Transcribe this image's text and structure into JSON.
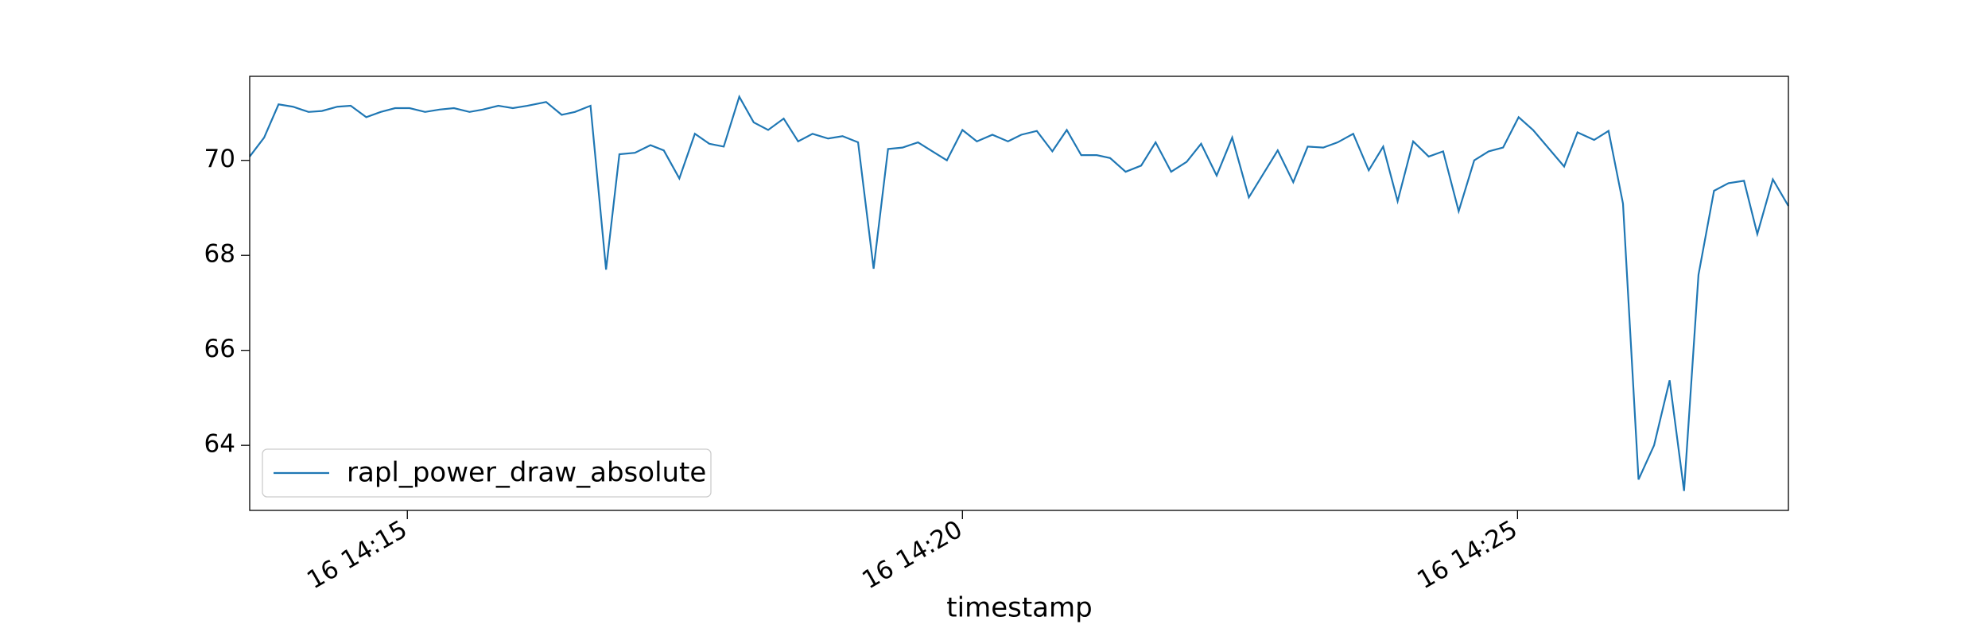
{
  "chart_data": {
    "type": "line",
    "x_label": "timestamp",
    "x": [
      13.58,
      13.71,
      13.84,
      13.97,
      14.11,
      14.23,
      14.37,
      14.49,
      14.63,
      14.76,
      14.89,
      15.02,
      15.16,
      15.29,
      15.42,
      15.56,
      15.68,
      15.82,
      15.95,
      16.08,
      16.25,
      16.39,
      16.51,
      16.65,
      16.79,
      16.91,
      17.05,
      17.19,
      17.31,
      17.45,
      17.59,
      17.72,
      17.85,
      17.99,
      18.12,
      18.25,
      18.39,
      18.52,
      18.65,
      18.79,
      18.92,
      19.06,
      19.2,
      19.33,
      19.46,
      19.6,
      19.73,
      19.86,
      20.0,
      20.13,
      20.27,
      20.41,
      20.53,
      20.67,
      20.81,
      20.94,
      21.07,
      21.21,
      21.33,
      21.47,
      21.61,
      21.74,
      21.88,
      22.02,
      22.15,
      22.29,
      22.43,
      22.58,
      22.84,
      22.98,
      23.11,
      23.25,
      23.38,
      23.52,
      23.66,
      23.79,
      23.92,
      24.06,
      24.2,
      24.33,
      24.47,
      24.61,
      24.74,
      24.87,
      25.01,
      25.14,
      25.42,
      25.54,
      25.69,
      25.82,
      25.95,
      26.09,
      26.23,
      26.37,
      26.5,
      26.63,
      26.77,
      26.9,
      27.04,
      27.16,
      27.3,
      27.44
    ],
    "series": [
      {
        "name": "rapl_power_draw_absolute",
        "color": "#1f77b4",
        "values": [
          70.08,
          70.48,
          71.18,
          71.13,
          71.02,
          71.04,
          71.13,
          71.15,
          70.91,
          71.02,
          71.1,
          71.1,
          71.02,
          71.07,
          71.1,
          71.02,
          71.07,
          71.15,
          71.1,
          71.15,
          71.23,
          70.96,
          71.02,
          71.15,
          67.7,
          70.13,
          70.16,
          70.32,
          70.21,
          69.62,
          70.56,
          70.35,
          70.29,
          71.34,
          70.8,
          70.64,
          70.88,
          70.4,
          70.56,
          70.46,
          70.51,
          70.38,
          67.72,
          70.24,
          70.27,
          70.38,
          70.19,
          70.0,
          70.64,
          70.4,
          70.54,
          70.4,
          70.54,
          70.62,
          70.19,
          70.64,
          70.11,
          70.11,
          70.05,
          69.76,
          69.89,
          70.38,
          69.76,
          69.97,
          70.35,
          69.68,
          70.48,
          69.22,
          70.21,
          69.54,
          70.29,
          70.27,
          70.38,
          70.56,
          69.79,
          70.29,
          69.14,
          70.4,
          70.08,
          70.19,
          68.93,
          70.0,
          70.19,
          70.27,
          70.91,
          70.64,
          69.87,
          70.59,
          70.43,
          70.62,
          69.09,
          63.28,
          64.0,
          65.37,
          63.04,
          67.59,
          69.36,
          69.52,
          69.57,
          68.45,
          69.6,
          69.04
        ]
      }
    ],
    "xlim": [
      13.58,
      27.44
    ],
    "xticks": [
      {
        "value": 15,
        "label": "16 14:15"
      },
      {
        "value": 20,
        "label": "16 14:20"
      },
      {
        "value": 25,
        "label": "16 14:25"
      }
    ],
    "ylim": [
      62.63,
      71.77
    ],
    "yticks": [
      64,
      66,
      68,
      70
    ],
    "grid": false,
    "legend": "lower left"
  }
}
